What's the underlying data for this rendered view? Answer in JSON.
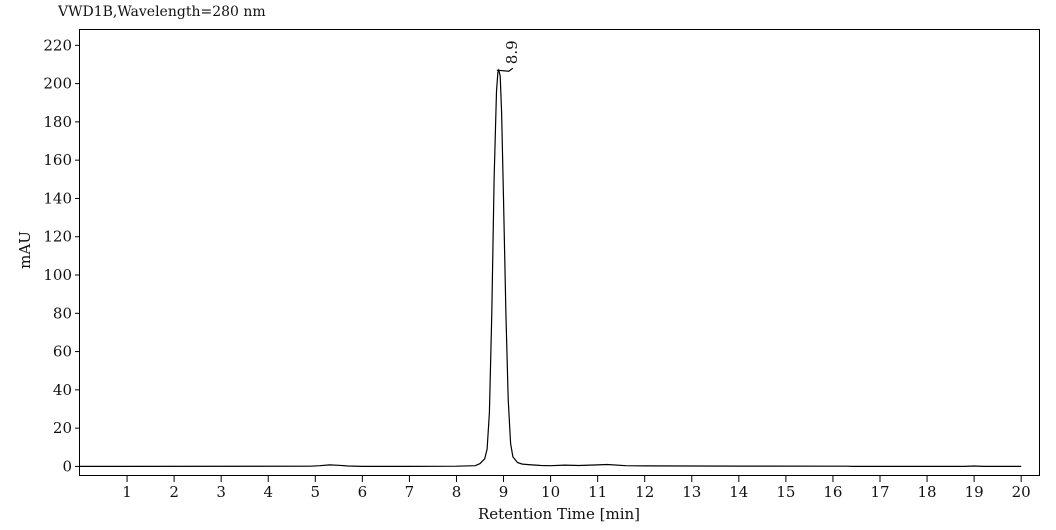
{
  "chart_data": {
    "type": "line",
    "title": "VWD1B,Wavelength=280 nm",
    "xlabel": "Retention Time [min]",
    "ylabel": "mAU",
    "xlim": [
      0,
      20.4
    ],
    "ylim": [
      -5,
      228
    ],
    "x_ticks": [
      1,
      2,
      3,
      4,
      5,
      6,
      7,
      8,
      9,
      10,
      11,
      12,
      13,
      14,
      15,
      16,
      17,
      18,
      19,
      20
    ],
    "y_ticks": [
      0,
      20,
      40,
      60,
      80,
      100,
      120,
      140,
      160,
      180,
      200,
      220
    ],
    "grid": false,
    "legend": "none",
    "line_color": "#000000",
    "series": [
      {
        "x": [
          0.0,
          4.9,
          5.1,
          5.3,
          5.5,
          5.7,
          6.0,
          7.0,
          8.0,
          8.4,
          8.5,
          8.6,
          8.65,
          8.7,
          8.75,
          8.8,
          8.85,
          8.88,
          8.9,
          8.93,
          8.96,
          9.0,
          9.05,
          9.1,
          9.15,
          9.2,
          9.3,
          9.4,
          9.6,
          9.8,
          10.0,
          10.3,
          10.6,
          11.0,
          11.2,
          11.6,
          12.0,
          13.0,
          14.0,
          16.3,
          16.4,
          17.0,
          18.0,
          18.8,
          19.0,
          19.2,
          20.0
        ],
        "y": [
          0.0,
          0.1,
          0.4,
          0.8,
          0.6,
          0.2,
          0.0,
          0.0,
          0.1,
          0.4,
          1.5,
          4.0,
          9.0,
          28.0,
          80.0,
          150.0,
          196.0,
          206.0,
          207.0,
          204.0,
          185.0,
          140.0,
          80.0,
          35.0,
          12.0,
          5.0,
          2.0,
          1.2,
          0.8,
          0.5,
          0.4,
          0.7,
          0.5,
          0.8,
          1.0,
          0.4,
          0.3,
          0.2,
          0.15,
          0.1,
          0.0,
          0.0,
          0.0,
          0.0,
          0.2,
          0.0,
          0.0
        ]
      }
    ],
    "annotations": [
      {
        "text": "8.9",
        "x": 8.9,
        "y": 207
      }
    ]
  }
}
